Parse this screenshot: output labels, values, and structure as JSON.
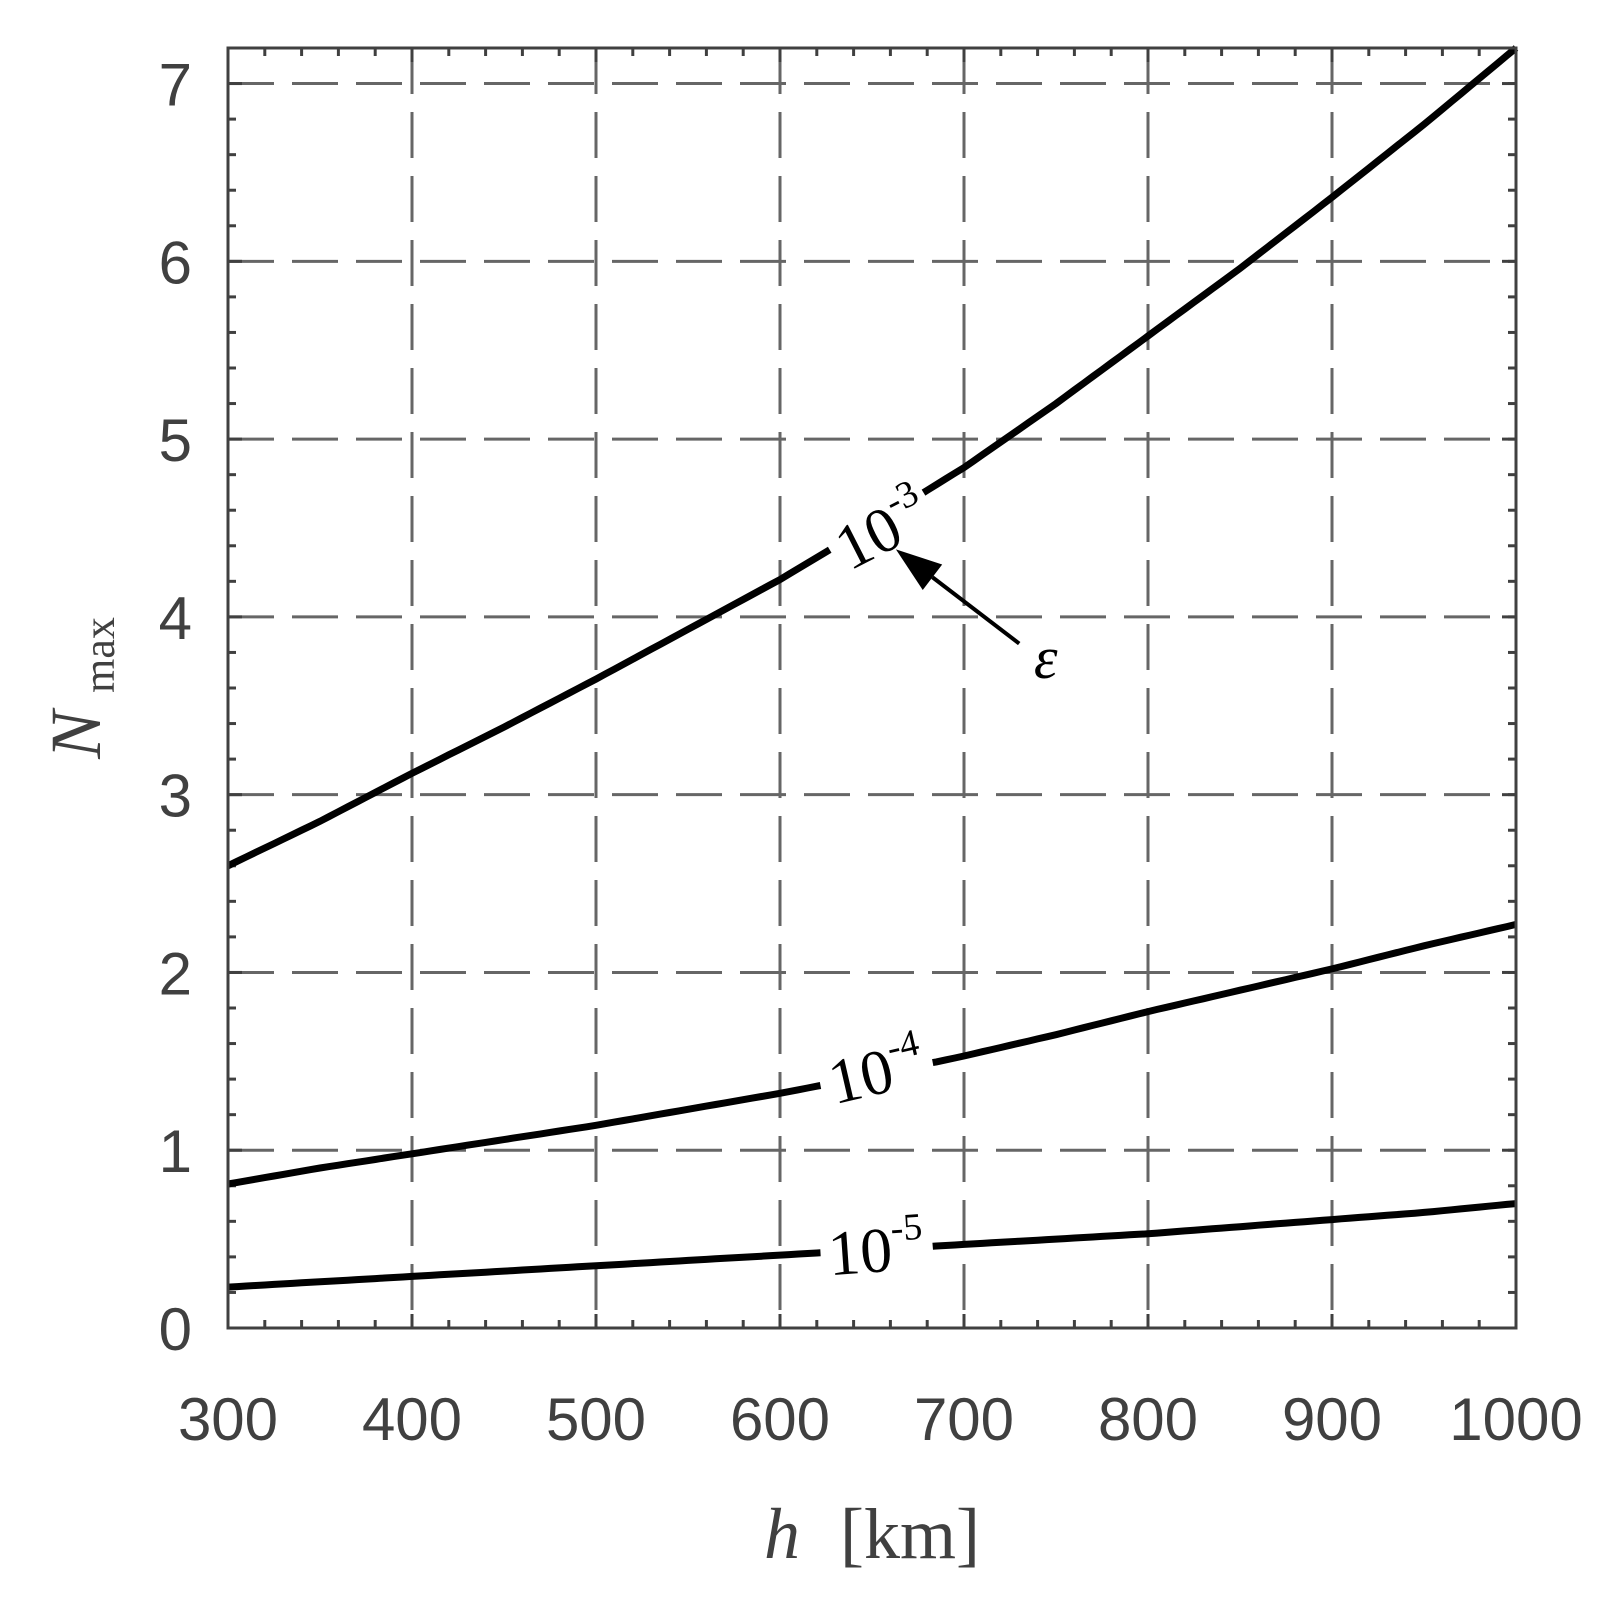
{
  "chart_data": {
    "type": "line",
    "xlabel": {
      "var": "h",
      "unit": "[km]"
    },
    "ylabel": {
      "var": "N",
      "sub": "max"
    },
    "xlim": [
      300,
      1000
    ],
    "ylim": [
      0,
      7.2
    ],
    "xticks": [
      300,
      400,
      500,
      600,
      700,
      800,
      900,
      1000
    ],
    "yticks": [
      0,
      1,
      2,
      3,
      4,
      5,
      6,
      7
    ],
    "grid": true,
    "series": [
      {
        "name": "10^-3",
        "label_base": "10",
        "label_exp": "-3",
        "label_at": [
          655,
          4.5
        ],
        "label_angle": -27,
        "gap": [
          627,
          678
        ],
        "x": [
          300,
          350,
          400,
          450,
          500,
          550,
          600,
          650,
          700,
          750,
          800,
          850,
          900,
          950,
          1000
        ],
        "y": [
          2.6,
          2.85,
          3.12,
          3.38,
          3.65,
          3.93,
          4.21,
          4.52,
          4.84,
          5.2,
          5.58,
          5.96,
          6.36,
          6.77,
          7.2
        ]
      },
      {
        "name": "10^-4",
        "label_base": "10",
        "label_exp": "-4",
        "label_at": [
          652,
          1.45
        ],
        "label_angle": -13,
        "gap": [
          622,
          683
        ],
        "x": [
          300,
          350,
          400,
          450,
          500,
          550,
          600,
          650,
          700,
          750,
          800,
          850,
          900,
          950,
          1000
        ],
        "y": [
          0.81,
          0.9,
          0.98,
          1.06,
          1.14,
          1.23,
          1.32,
          1.42,
          1.53,
          1.65,
          1.78,
          1.9,
          2.02,
          2.15,
          2.27
        ]
      },
      {
        "name": "10^-5",
        "label_base": "10",
        "label_exp": "-5",
        "label_at": [
          652,
          0.45
        ],
        "label_angle": -4,
        "gap": [
          622,
          683
        ],
        "x": [
          300,
          350,
          400,
          450,
          500,
          550,
          600,
          650,
          700,
          750,
          800,
          850,
          900,
          950,
          1000
        ],
        "y": [
          0.23,
          0.26,
          0.29,
          0.32,
          0.35,
          0.38,
          0.41,
          0.44,
          0.47,
          0.5,
          0.53,
          0.57,
          0.61,
          0.65,
          0.7
        ]
      }
    ],
    "annotations": [
      {
        "text": "ε",
        "text_at": [
          738,
          3.7
        ],
        "arrow_from": [
          730,
          3.85
        ],
        "arrow_to": [
          663,
          4.38
        ]
      }
    ]
  },
  "colors": {
    "axis": "#404040",
    "grid": "#666666",
    "curve": "#000000"
  }
}
